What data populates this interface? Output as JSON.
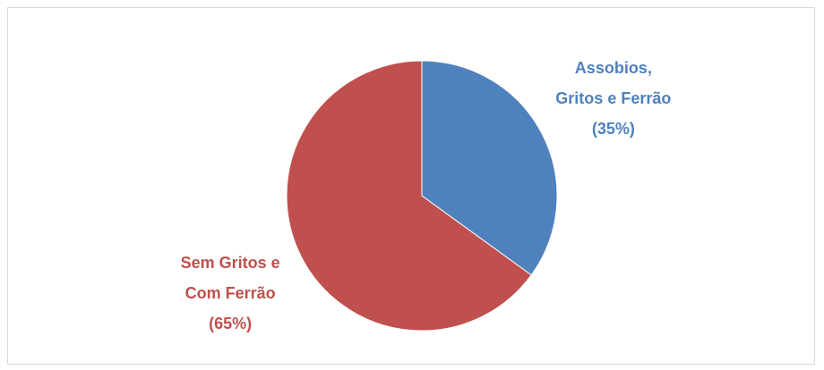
{
  "chart_data": {
    "type": "pie",
    "categories": [
      "Assobios,\nGritos e Ferrão",
      "Sem Gritos e\nCom Ferrão"
    ],
    "values": [
      35,
      65
    ],
    "value_labels": [
      "(35%)",
      "(65%)"
    ],
    "colors": [
      "#4f81bd",
      "#c0504d"
    ]
  }
}
